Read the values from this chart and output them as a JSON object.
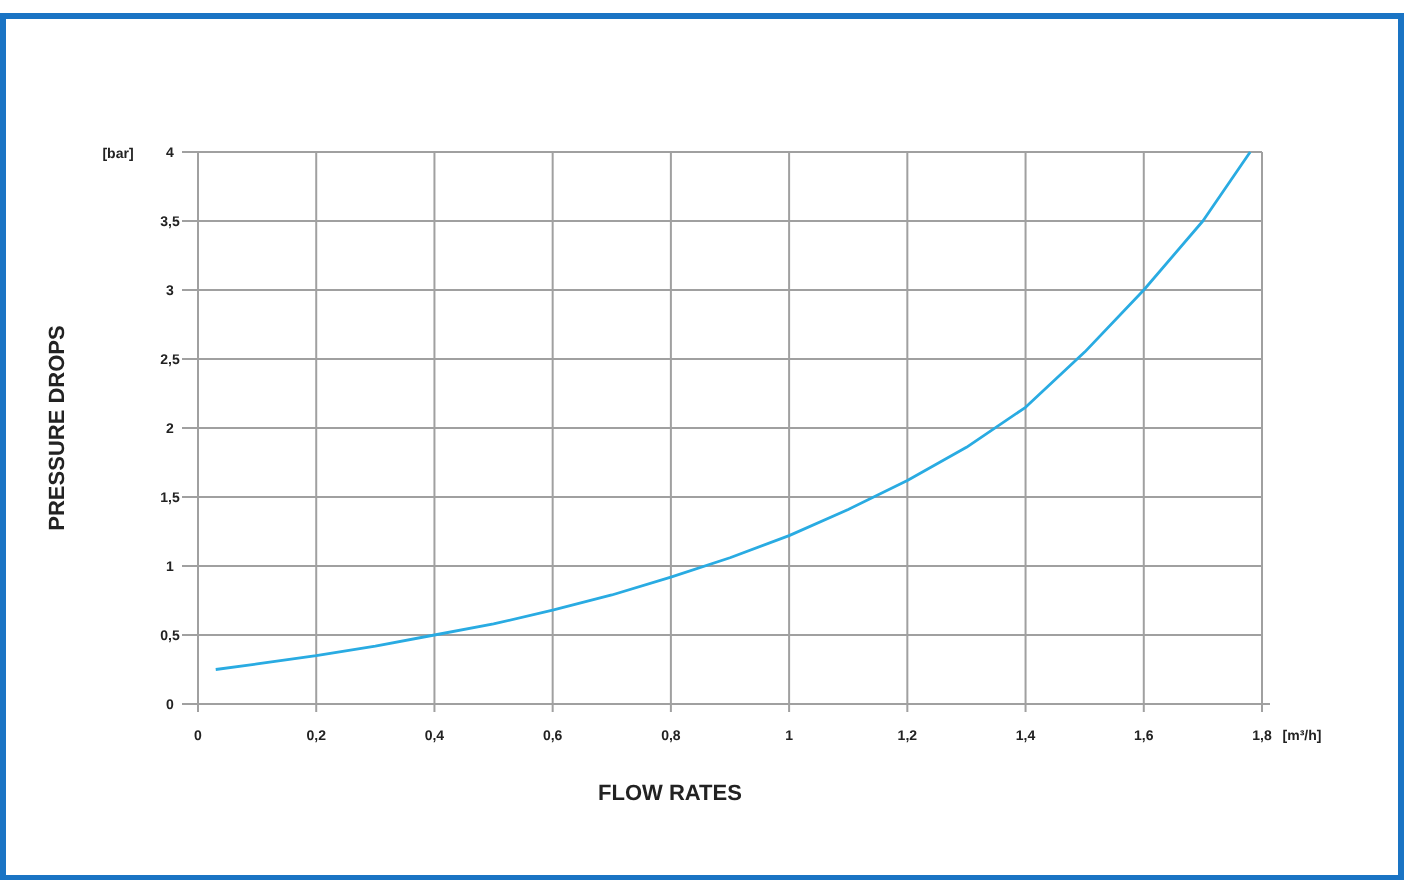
{
  "chart_data": {
    "type": "line",
    "xlabel": "FLOW RATES",
    "ylabel": "PRESSURE DROPS",
    "annotations": [
      "[bar]",
      "[m³/h]"
    ],
    "x": [
      0.03,
      0.1,
      0.2,
      0.3,
      0.4,
      0.5,
      0.6,
      0.7,
      0.8,
      0.9,
      1.0,
      1.1,
      1.2,
      1.3,
      1.4,
      1.5,
      1.6,
      1.7,
      1.78
    ],
    "series": [
      {
        "color": "#29abe2",
        "values": [
          0.25,
          0.29,
          0.35,
          0.42,
          0.5,
          0.58,
          0.68,
          0.79,
          0.92,
          1.06,
          1.22,
          1.41,
          1.62,
          1.86,
          2.15,
          2.55,
          3.0,
          3.5,
          4.0
        ]
      }
    ],
    "xlim": [
      0,
      1.8
    ],
    "ylim": [
      0,
      4
    ],
    "xticks": [
      0,
      {
        "value": 0.2,
        "label": "0,2"
      },
      {
        "value": 0.4,
        "label": "0,4"
      },
      {
        "value": 0.6,
        "label": "0,6"
      },
      {
        "value": 0.8,
        "label": "0,8"
      },
      1,
      {
        "value": 1.2,
        "label": "1,2"
      },
      {
        "value": 1.4,
        "label": "1,4"
      },
      {
        "value": 1.6,
        "label": "1,6"
      },
      {
        "value": 1.8,
        "label": "1,8"
      }
    ],
    "yticks": [
      0,
      {
        "value": 0.5,
        "label": "0,5"
      },
      1,
      {
        "value": 1.5,
        "label": "1,5"
      },
      2,
      {
        "value": 2.5,
        "label": "2,5"
      },
      3,
      {
        "value": 3.5,
        "label": "3,5"
      },
      4
    ],
    "grid": true,
    "marker": "none",
    "line_style": "solid"
  }
}
